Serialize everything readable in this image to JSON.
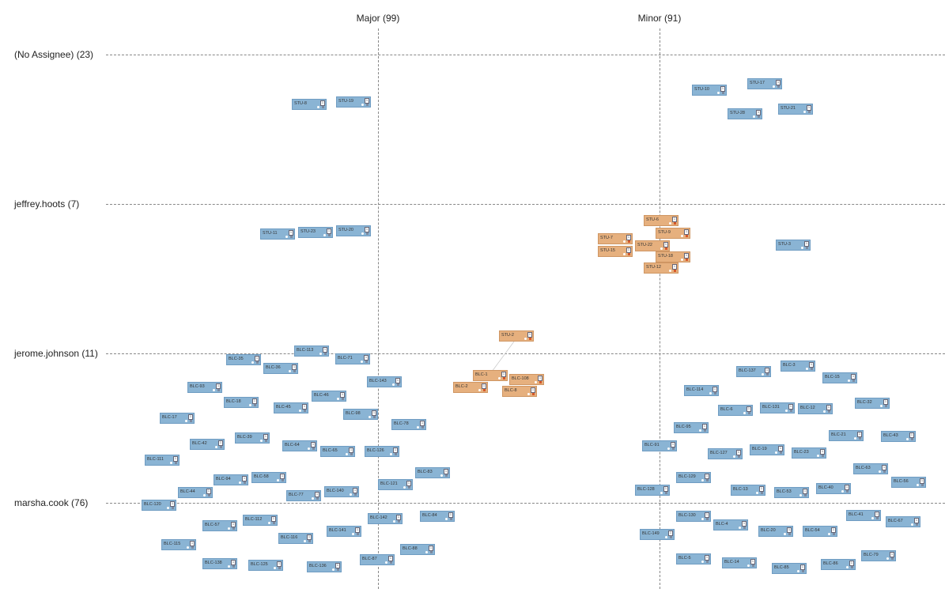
{
  "columns": [
    {
      "label": "Major (99)"
    },
    {
      "label": "Minor (91)"
    }
  ],
  "rows": [
    {
      "label": "(No Assignee) (23)"
    },
    {
      "label": "jeffrey.hoots (7)"
    },
    {
      "label": "jerome.johnson (11)"
    },
    {
      "label": "marsha.cook (76)"
    }
  ],
  "colors": {
    "default_card": "#8ab4d4",
    "highlight_card": "#e6b07e",
    "grid_line": "#888888"
  },
  "cards": [
    {
      "key": "STU-8",
      "style": "blue",
      "badge": "1"
    },
    {
      "key": "STU-19",
      "style": "blue",
      "badge": "1"
    },
    {
      "key": "STU-10",
      "style": "blue",
      "badge": "1"
    },
    {
      "key": "STU-17",
      "style": "blue",
      "badge": "1"
    },
    {
      "key": "STU-28",
      "style": "blue",
      "badge": "1"
    },
    {
      "key": "STU-21",
      "style": "blue",
      "badge": "1"
    },
    {
      "key": "STU-11",
      "style": "blue",
      "badge": "1"
    },
    {
      "key": "STU-23",
      "style": "blue",
      "badge": "1"
    },
    {
      "key": "STU-20",
      "style": "blue",
      "badge": "1"
    },
    {
      "key": "STU-6",
      "style": "orange",
      "badge": "1"
    },
    {
      "key": "STU-9",
      "style": "orange",
      "badge": "1"
    },
    {
      "key": "STU-7",
      "style": "orange",
      "badge": "1"
    },
    {
      "key": "STU-22",
      "style": "orange",
      "badge": "1"
    },
    {
      "key": "STU-15",
      "style": "orange",
      "badge": "1"
    },
    {
      "key": "STU-18",
      "style": "orange",
      "badge": "1"
    },
    {
      "key": "STU-12",
      "style": "orange",
      "badge": "1"
    },
    {
      "key": "STU-3",
      "style": "blue",
      "badge": "1"
    },
    {
      "key": "STU-2",
      "style": "orange",
      "badge": "1"
    },
    {
      "key": "BLC-1",
      "style": "orange",
      "badge": "1"
    },
    {
      "key": "BLC-108",
      "style": "orange",
      "badge": "1"
    },
    {
      "key": "BLC-2",
      "style": "orange",
      "badge": "1"
    },
    {
      "key": "BLC-8",
      "style": "orange",
      "badge": "1"
    },
    {
      "key": "BLC-35",
      "style": "blue",
      "badge": "1"
    },
    {
      "key": "BLC-113",
      "style": "blue",
      "badge": "1"
    },
    {
      "key": "BLC-71",
      "style": "blue",
      "badge": "1"
    },
    {
      "key": "BLC-36",
      "style": "blue",
      "badge": "1"
    },
    {
      "key": "BLC-93",
      "style": "blue",
      "badge": "1"
    },
    {
      "key": "BLC-143",
      "style": "blue",
      "badge": "1"
    },
    {
      "key": "BLC-46",
      "style": "blue",
      "badge": "1"
    },
    {
      "key": "BLC-18",
      "style": "blue",
      "badge": "1"
    },
    {
      "key": "BLC-45",
      "style": "blue",
      "badge": "1"
    },
    {
      "key": "BLC-98",
      "style": "blue",
      "badge": "1"
    },
    {
      "key": "BLC-17",
      "style": "blue",
      "badge": "1"
    },
    {
      "key": "BLC-78",
      "style": "blue",
      "badge": "1"
    },
    {
      "key": "BLC-39",
      "style": "blue",
      "badge": "1"
    },
    {
      "key": "BLC-42",
      "style": "blue",
      "badge": "1"
    },
    {
      "key": "BLC-64",
      "style": "blue",
      "badge": "1"
    },
    {
      "key": "BLC-65",
      "style": "blue",
      "badge": "1"
    },
    {
      "key": "BLC-126",
      "style": "blue",
      "badge": "1"
    },
    {
      "key": "BLC-111",
      "style": "blue",
      "badge": "1"
    },
    {
      "key": "BLC-83",
      "style": "blue",
      "badge": "1"
    },
    {
      "key": "BLC-94",
      "style": "blue",
      "badge": "1"
    },
    {
      "key": "BLC-58",
      "style": "blue",
      "badge": "1"
    },
    {
      "key": "BLC-121",
      "style": "blue",
      "badge": "1"
    },
    {
      "key": "BLC-44",
      "style": "blue",
      "badge": "1"
    },
    {
      "key": "BLC-77",
      "style": "blue",
      "badge": "1"
    },
    {
      "key": "BLC-140",
      "style": "blue",
      "badge": "1"
    },
    {
      "key": "BLC-120",
      "style": "blue",
      "badge": "1"
    },
    {
      "key": "BLC-112",
      "style": "blue",
      "badge": "1"
    },
    {
      "key": "BLC-142",
      "style": "blue",
      "badge": "1"
    },
    {
      "key": "BLC-84",
      "style": "blue",
      "badge": "1"
    },
    {
      "key": "BLC-57",
      "style": "blue",
      "badge": "1"
    },
    {
      "key": "BLC-141",
      "style": "blue",
      "badge": "1"
    },
    {
      "key": "BLC-116",
      "style": "blue",
      "badge": "1"
    },
    {
      "key": "BLC-115",
      "style": "blue",
      "badge": "1"
    },
    {
      "key": "BLC-88",
      "style": "blue",
      "badge": "1"
    },
    {
      "key": "BLC-87",
      "style": "blue",
      "badge": "1"
    },
    {
      "key": "BLC-138",
      "style": "blue",
      "badge": "1"
    },
    {
      "key": "BLC-125",
      "style": "blue",
      "badge": "1"
    },
    {
      "key": "BLC-136",
      "style": "blue",
      "badge": "1"
    },
    {
      "key": "BLC-3",
      "style": "blue",
      "badge": "1"
    },
    {
      "key": "BLC-137",
      "style": "blue",
      "badge": "1"
    },
    {
      "key": "BLC-15",
      "style": "blue",
      "badge": "1"
    },
    {
      "key": "BLC-114",
      "style": "blue",
      "badge": "1"
    },
    {
      "key": "BLC-32",
      "style": "blue",
      "badge": "1"
    },
    {
      "key": "BLC-6",
      "style": "blue",
      "badge": "1"
    },
    {
      "key": "BLC-131",
      "style": "blue",
      "badge": "1"
    },
    {
      "key": "BLC-12",
      "style": "blue",
      "badge": "1"
    },
    {
      "key": "BLC-95",
      "style": "blue",
      "badge": "1"
    },
    {
      "key": "BLC-21",
      "style": "blue",
      "badge": "1"
    },
    {
      "key": "BLC-43",
      "style": "blue",
      "badge": "1"
    },
    {
      "key": "BLC-91",
      "style": "blue",
      "badge": "1"
    },
    {
      "key": "BLC-127",
      "style": "blue",
      "badge": "1"
    },
    {
      "key": "BLC-19",
      "style": "blue",
      "badge": "1"
    },
    {
      "key": "BLC-23",
      "style": "blue",
      "badge": "1"
    },
    {
      "key": "BLC-63",
      "style": "blue",
      "badge": "1"
    },
    {
      "key": "BLC-129",
      "style": "blue",
      "badge": "1"
    },
    {
      "key": "BLC-56",
      "style": "blue",
      "badge": "1"
    },
    {
      "key": "BLC-128",
      "style": "blue",
      "badge": "1"
    },
    {
      "key": "BLC-13",
      "style": "blue",
      "badge": "1"
    },
    {
      "key": "BLC-53",
      "style": "blue",
      "badge": "1"
    },
    {
      "key": "BLC-40",
      "style": "blue",
      "badge": "1"
    },
    {
      "key": "BLC-130",
      "style": "blue",
      "badge": "1"
    },
    {
      "key": "BLC-41",
      "style": "blue",
      "badge": "1"
    },
    {
      "key": "BLC-4",
      "style": "blue",
      "badge": "1"
    },
    {
      "key": "BLC-67",
      "style": "blue",
      "badge": "1"
    },
    {
      "key": "BLC-20",
      "style": "blue",
      "badge": "1"
    },
    {
      "key": "BLC-54",
      "style": "blue",
      "badge": "1"
    },
    {
      "key": "BLC-149",
      "style": "blue",
      "badge": "1"
    },
    {
      "key": "BLC-79",
      "style": "blue",
      "badge": "1"
    },
    {
      "key": "BLC-5",
      "style": "blue",
      "badge": "1"
    },
    {
      "key": "BLC-14",
      "style": "blue",
      "badge": "1"
    },
    {
      "key": "BLC-85",
      "style": "blue",
      "badge": "1"
    },
    {
      "key": "BLC-86",
      "style": "blue",
      "badge": "1"
    }
  ]
}
